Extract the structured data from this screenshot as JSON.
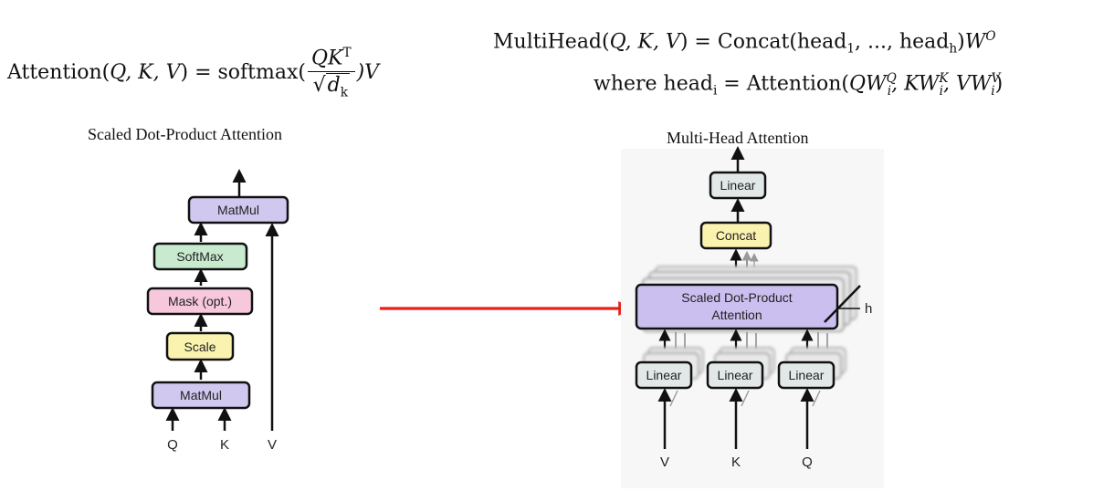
{
  "formulas": {
    "attention": {
      "lhs": "Attention(",
      "args": "Q, K, V",
      "mid": ") = softmax(",
      "num": "QK",
      "num_sup": "T",
      "den": "d",
      "den_sub": "k",
      "rhs": ")V"
    },
    "multihead": {
      "line1_lhs": "MultiHead(",
      "line1_args": "Q, K, V",
      "line1_mid": ") = Concat(head",
      "line1_sub1": "1",
      "line1_dots": ", ..., head",
      "line1_subh": "h",
      "line1_close": ")",
      "line1_w": "W",
      "line1_sup": "O",
      "line2_where": "where head",
      "line2_subi": "i",
      "line2_eq": " = Attention(",
      "line2_q": "QW",
      "line2_q_sub": "i",
      "line2_q_sup": "Q",
      "line2_k": ", KW",
      "line2_k_sub": "i",
      "line2_k_sup": "K",
      "line2_v": ", VW",
      "line2_v_sub": "i",
      "line2_v_sup": "V",
      "line2_close": ")"
    }
  },
  "diagrams": {
    "scaled": {
      "title": "Scaled Dot-Product Attention",
      "boxes": {
        "matmul_top": "MatMul",
        "softmax": "SoftMax",
        "mask": "Mask (opt.)",
        "scale": "Scale",
        "matmul_bottom": "MatMul"
      },
      "inputs": {
        "q": "Q",
        "k": "K",
        "v": "V"
      }
    },
    "multihead": {
      "title": "Multi-Head Attention",
      "boxes": {
        "linear_top": "Linear",
        "concat": "Concat",
        "sdpa_line1": "Scaled Dot-Product",
        "sdpa_line2": "Attention",
        "linear_v": "Linear",
        "linear_k": "Linear",
        "linear_q": "Linear"
      },
      "h_label": "h",
      "inputs": {
        "v": "V",
        "k": "K",
        "q": "Q"
      }
    }
  },
  "colors": {
    "matmul": "#d0c8ef",
    "softmax": "#c8ebcf",
    "mask": "#f7c8dc",
    "scale": "#faf3b0",
    "concat": "#faf3b0",
    "linear": "#e2e8e8",
    "sdpa": "#cbbff0",
    "arrow_red": "#e8201b"
  }
}
